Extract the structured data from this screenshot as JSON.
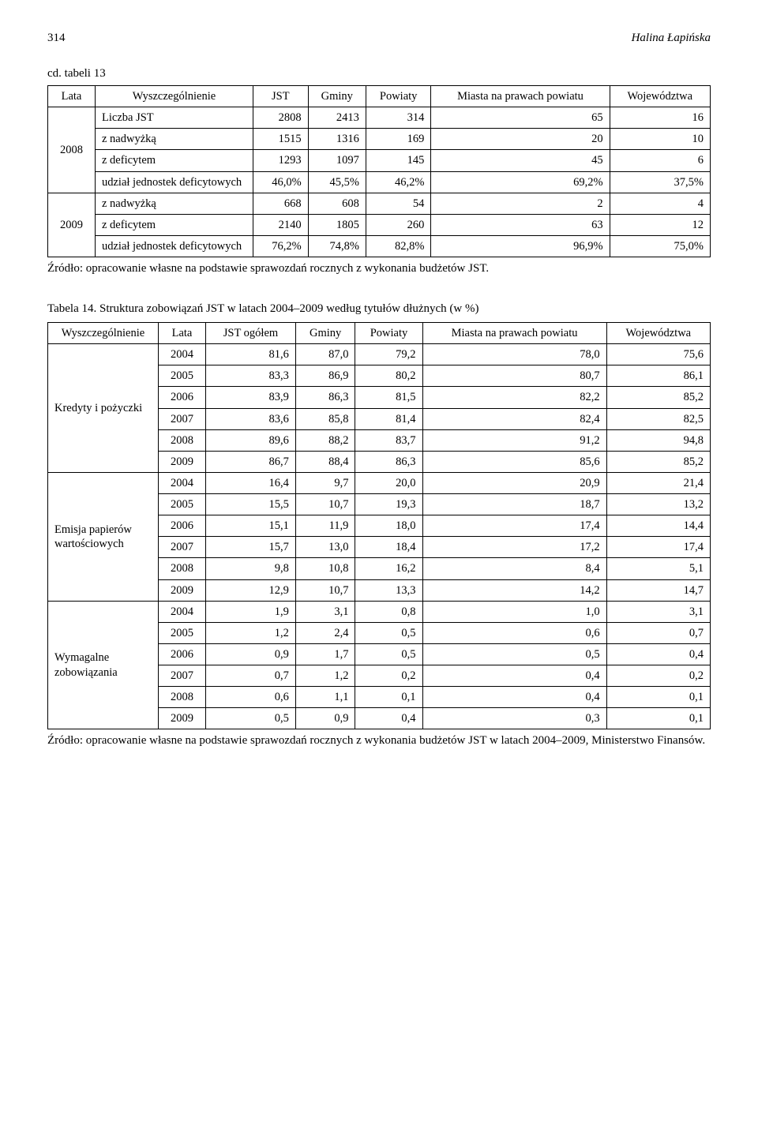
{
  "header": {
    "pagenum": "314",
    "author": "Halina Łapińska"
  },
  "table13": {
    "cont_label": "cd. tabeli 13",
    "columns": [
      "Lata",
      "Wyszczególnienie",
      "JST",
      "Gminy",
      "Powiaty",
      "Miasta na prawach powiatu",
      "Województwa"
    ],
    "groups": [
      {
        "year": "2008",
        "rows": [
          {
            "label": "Liczba JST",
            "vals": [
              "2808",
              "2413",
              "314",
              "65",
              "16"
            ]
          },
          {
            "label": "z nadwyżką",
            "vals": [
              "1515",
              "1316",
              "169",
              "20",
              "10"
            ]
          },
          {
            "label": "z deficytem",
            "vals": [
              "1293",
              "1097",
              "145",
              "45",
              "6"
            ]
          },
          {
            "label": "udział jednostek deficytowych",
            "vals": [
              "46,0%",
              "45,5%",
              "46,2%",
              "69,2%",
              "37,5%"
            ]
          }
        ]
      },
      {
        "year": "2009",
        "rows": [
          {
            "label": "z nadwyżką",
            "vals": [
              "668",
              "608",
              "54",
              "2",
              "4"
            ]
          },
          {
            "label": "z deficytem",
            "vals": [
              "2140",
              "1805",
              "260",
              "63",
              "12"
            ]
          },
          {
            "label": "udział jednostek deficytowych",
            "vals": [
              "76,2%",
              "74,8%",
              "82,8%",
              "96,9%",
              "75,0%"
            ]
          }
        ]
      }
    ],
    "source": "Źródło: opracowanie własne na podstawie sprawozdań rocznych z wykonania budżetów JST."
  },
  "table14": {
    "caption": "Tabela 14. Struktura zobowiązań JST w latach 2004–2009 według tytułów dłużnych (w %)",
    "columns": [
      "Wyszczególnienie",
      "Lata",
      "JST ogółem",
      "Gminy",
      "Powiaty",
      "Miasta na prawach powiatu",
      "Województwa"
    ],
    "groups": [
      {
        "label": "Kredyty i pożyczki",
        "rows": [
          {
            "year": "2004",
            "vals": [
              "81,6",
              "87,0",
              "79,2",
              "78,0",
              "75,6"
            ]
          },
          {
            "year": "2005",
            "vals": [
              "83,3",
              "86,9",
              "80,2",
              "80,7",
              "86,1"
            ]
          },
          {
            "year": "2006",
            "vals": [
              "83,9",
              "86,3",
              "81,5",
              "82,2",
              "85,2"
            ]
          },
          {
            "year": "2007",
            "vals": [
              "83,6",
              "85,8",
              "81,4",
              "82,4",
              "82,5"
            ]
          },
          {
            "year": "2008",
            "vals": [
              "89,6",
              "88,2",
              "83,7",
              "91,2",
              "94,8"
            ]
          },
          {
            "year": "2009",
            "vals": [
              "86,7",
              "88,4",
              "86,3",
              "85,6",
              "85,2"
            ]
          }
        ]
      },
      {
        "label": "Emisja papierów wartościowych",
        "rows": [
          {
            "year": "2004",
            "vals": [
              "16,4",
              "9,7",
              "20,0",
              "20,9",
              "21,4"
            ]
          },
          {
            "year": "2005",
            "vals": [
              "15,5",
              "10,7",
              "19,3",
              "18,7",
              "13,2"
            ]
          },
          {
            "year": "2006",
            "vals": [
              "15,1",
              "11,9",
              "18,0",
              "17,4",
              "14,4"
            ]
          },
          {
            "year": "2007",
            "vals": [
              "15,7",
              "13,0",
              "18,4",
              "17,2",
              "17,4"
            ]
          },
          {
            "year": "2008",
            "vals": [
              "9,8",
              "10,8",
              "16,2",
              "8,4",
              "5,1"
            ]
          },
          {
            "year": "2009",
            "vals": [
              "12,9",
              "10,7",
              "13,3",
              "14,2",
              "14,7"
            ]
          }
        ]
      },
      {
        "label": "Wymagalne zobowiązania",
        "rows": [
          {
            "year": "2004",
            "vals": [
              "1,9",
              "3,1",
              "0,8",
              "1,0",
              "3,1"
            ]
          },
          {
            "year": "2005",
            "vals": [
              "1,2",
              "2,4",
              "0,5",
              "0,6",
              "0,7"
            ]
          },
          {
            "year": "2006",
            "vals": [
              "0,9",
              "1,7",
              "0,5",
              "0,5",
              "0,4"
            ]
          },
          {
            "year": "2007",
            "vals": [
              "0,7",
              "1,2",
              "0,2",
              "0,4",
              "0,2"
            ]
          },
          {
            "year": "2008",
            "vals": [
              "0,6",
              "1,1",
              "0,1",
              "0,4",
              "0,1"
            ]
          },
          {
            "year": "2009",
            "vals": [
              "0,5",
              "0,9",
              "0,4",
              "0,3",
              "0,1"
            ]
          }
        ]
      }
    ],
    "source": "Źródło: opracowanie własne na podstawie sprawozdań rocznych z wykonania budżetów JST w latach 2004–2009, Ministerstwo Finansów."
  },
  "col_widths_13": [
    "60px",
    "200px",
    "auto",
    "auto",
    "auto",
    "auto",
    "auto"
  ],
  "col_widths_14": [
    "140px",
    "60px",
    "auto",
    "auto",
    "auto",
    "auto",
    "auto"
  ]
}
